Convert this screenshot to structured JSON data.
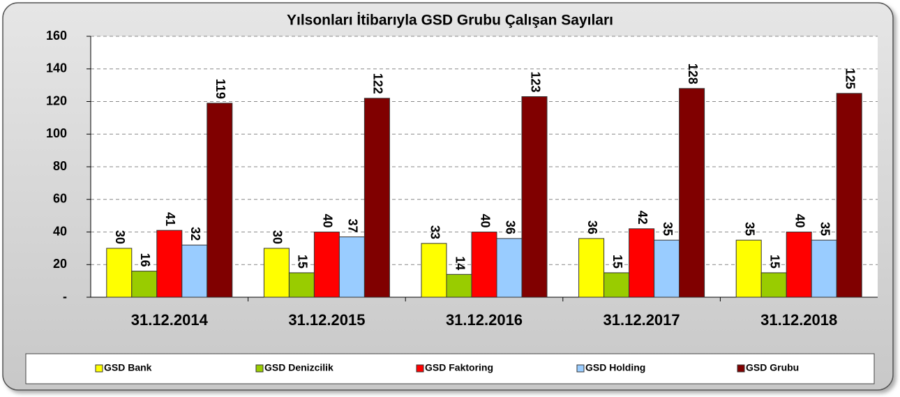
{
  "chart_data": {
    "type": "bar",
    "title": "Yılsonları İtibarıyla GSD Grubu Çalışan Sayıları",
    "categories": [
      "31.12.2014",
      "31.12.2015",
      "31.12.2016",
      "31.12.2017",
      "31.12.2018"
    ],
    "series": [
      {
        "name": "GSD Bank",
        "color": "#ffff00",
        "values": [
          30,
          30,
          33,
          36,
          35
        ]
      },
      {
        "name": "GSD Denizcilik",
        "color": "#99cc00",
        "values": [
          16,
          15,
          14,
          15,
          15
        ]
      },
      {
        "name": "GSD Faktoring",
        "color": "#ff0000",
        "values": [
          41,
          40,
          40,
          42,
          40
        ]
      },
      {
        "name": "GSD Holding",
        "color": "#99ccff",
        "values": [
          32,
          37,
          36,
          35,
          35
        ]
      },
      {
        "name": "GSD Grubu",
        "color": "#800000",
        "values": [
          119,
          122,
          123,
          128,
          125
        ]
      }
    ],
    "ylim": [
      0,
      160
    ],
    "yticks": [
      {
        "value": 0,
        "label": "-"
      },
      20,
      40,
      60,
      80,
      100,
      120,
      140,
      160
    ],
    "grid": true,
    "legend": "bottom"
  }
}
